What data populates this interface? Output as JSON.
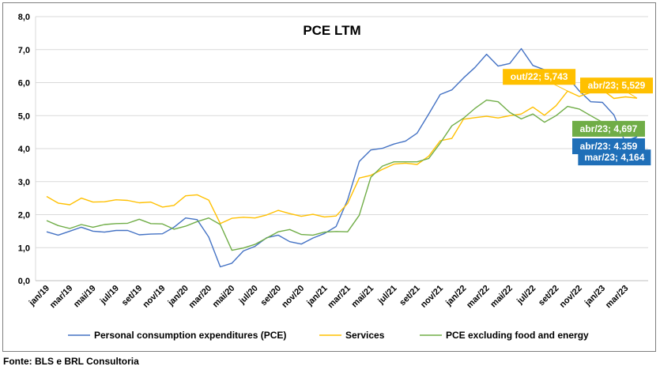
{
  "source": "Fonte: BLS e BRL Consultoria",
  "chart_data": {
    "type": "line",
    "title": "PCE LTM",
    "ylim": [
      0,
      8
    ],
    "yticks": [
      "0,0",
      "1,0",
      "2,0",
      "3,0",
      "4,0",
      "5,0",
      "6,0",
      "7,0",
      "8,0"
    ],
    "grid": true,
    "legend_position": "bottom",
    "x": [
      "jan/19",
      "fev/19",
      "mar/19",
      "abr/19",
      "mai/19",
      "jun/19",
      "jul/19",
      "ago/19",
      "set/19",
      "out/19",
      "nov/19",
      "dez/19",
      "jan/20",
      "fev/20",
      "mar/20",
      "abr/20",
      "mai/20",
      "jun/20",
      "jul/20",
      "ago/20",
      "set/20",
      "out/20",
      "nov/20",
      "dez/20",
      "jan/21",
      "fev/21",
      "mar/21",
      "abr/21",
      "mai/21",
      "jun/21",
      "jul/21",
      "ago/21",
      "set/21",
      "out/21",
      "nov/21",
      "dez/21",
      "jan/22",
      "fev/22",
      "mar/22",
      "abr/22",
      "mai/22",
      "jun/22",
      "jul/22",
      "ago/22",
      "set/22",
      "out/22",
      "nov/22",
      "dez/22",
      "jan/23",
      "fev/23",
      "mar/23",
      "abr/23"
    ],
    "x_tick_labels": [
      "jan/19",
      "mar/19",
      "mai/19",
      "jul/19",
      "set/19",
      "nov/19",
      "jan/20",
      "mar/20",
      "mai/20",
      "jul/20",
      "set/20",
      "nov/20",
      "jan/21",
      "mar/21",
      "mai/21",
      "jul/21",
      "set/21",
      "nov/21",
      "jan/22",
      "mar/22",
      "mai/22",
      "jul/22",
      "set/22",
      "nov/22",
      "jan/23",
      "mar/23"
    ],
    "series": [
      {
        "name": "Personal consumption expenditures (PCE)",
        "color": "#4472c4",
        "values": [
          1.48,
          1.38,
          1.5,
          1.62,
          1.5,
          1.47,
          1.52,
          1.52,
          1.39,
          1.41,
          1.42,
          1.62,
          1.9,
          1.85,
          1.32,
          0.42,
          0.53,
          0.9,
          1.04,
          1.3,
          1.38,
          1.18,
          1.11,
          1.29,
          1.43,
          1.64,
          2.45,
          3.61,
          3.96,
          4.01,
          4.14,
          4.23,
          4.47,
          5.05,
          5.64,
          5.78,
          6.14,
          6.46,
          6.86,
          6.5,
          6.58,
          7.03,
          6.52,
          6.39,
          6.39,
          6.17,
          5.75,
          5.42,
          5.4,
          5.02,
          4.164,
          4.359
        ]
      },
      {
        "name": "Services",
        "color": "#ffc000",
        "values": [
          2.55,
          2.35,
          2.3,
          2.5,
          2.38,
          2.39,
          2.45,
          2.43,
          2.36,
          2.38,
          2.23,
          2.28,
          2.57,
          2.6,
          2.44,
          1.73,
          1.89,
          1.92,
          1.9,
          1.99,
          2.13,
          2.03,
          1.95,
          2.01,
          1.93,
          1.96,
          2.34,
          3.11,
          3.19,
          3.37,
          3.53,
          3.56,
          3.52,
          3.77,
          4.24,
          4.31,
          4.89,
          4.94,
          4.98,
          4.93,
          5.0,
          5.05,
          5.26,
          5.01,
          5.3,
          5.743,
          5.58,
          5.7,
          5.78,
          5.52,
          5.57,
          5.529
        ]
      },
      {
        "name": "PCE excluding food and energy",
        "color": "#70ad47",
        "values": [
          1.82,
          1.67,
          1.58,
          1.7,
          1.62,
          1.7,
          1.73,
          1.74,
          1.86,
          1.73,
          1.72,
          1.56,
          1.65,
          1.79,
          1.9,
          1.7,
          0.92,
          0.99,
          1.1,
          1.29,
          1.48,
          1.55,
          1.4,
          1.38,
          1.47,
          1.49,
          1.48,
          1.98,
          3.13,
          3.47,
          3.6,
          3.6,
          3.6,
          3.7,
          4.17,
          4.69,
          4.92,
          5.22,
          5.47,
          5.42,
          5.1,
          4.9,
          5.05,
          4.8,
          5.0,
          5.28,
          5.2,
          5.0,
          4.8,
          4.72,
          4.7,
          4.697
        ]
      }
    ],
    "callouts": [
      {
        "text": "out/22; 5,743",
        "series": 1,
        "color": "#ffc000",
        "at": "out/22"
      },
      {
        "text": "abr/23; 5,529",
        "series": 1,
        "color": "#ffc000",
        "at": "abr/23"
      },
      {
        "text": "abr/23; 4,697",
        "series": 2,
        "color": "#70ad47",
        "at": "abr/23"
      },
      {
        "text": "abr/23; 4,359",
        "series": 0,
        "color": "#1f6fb8",
        "at": "abr/23"
      },
      {
        "text": "mar/23; 4,164",
        "series": 0,
        "color": "#1f6fb8",
        "at": "mar/23"
      }
    ]
  }
}
